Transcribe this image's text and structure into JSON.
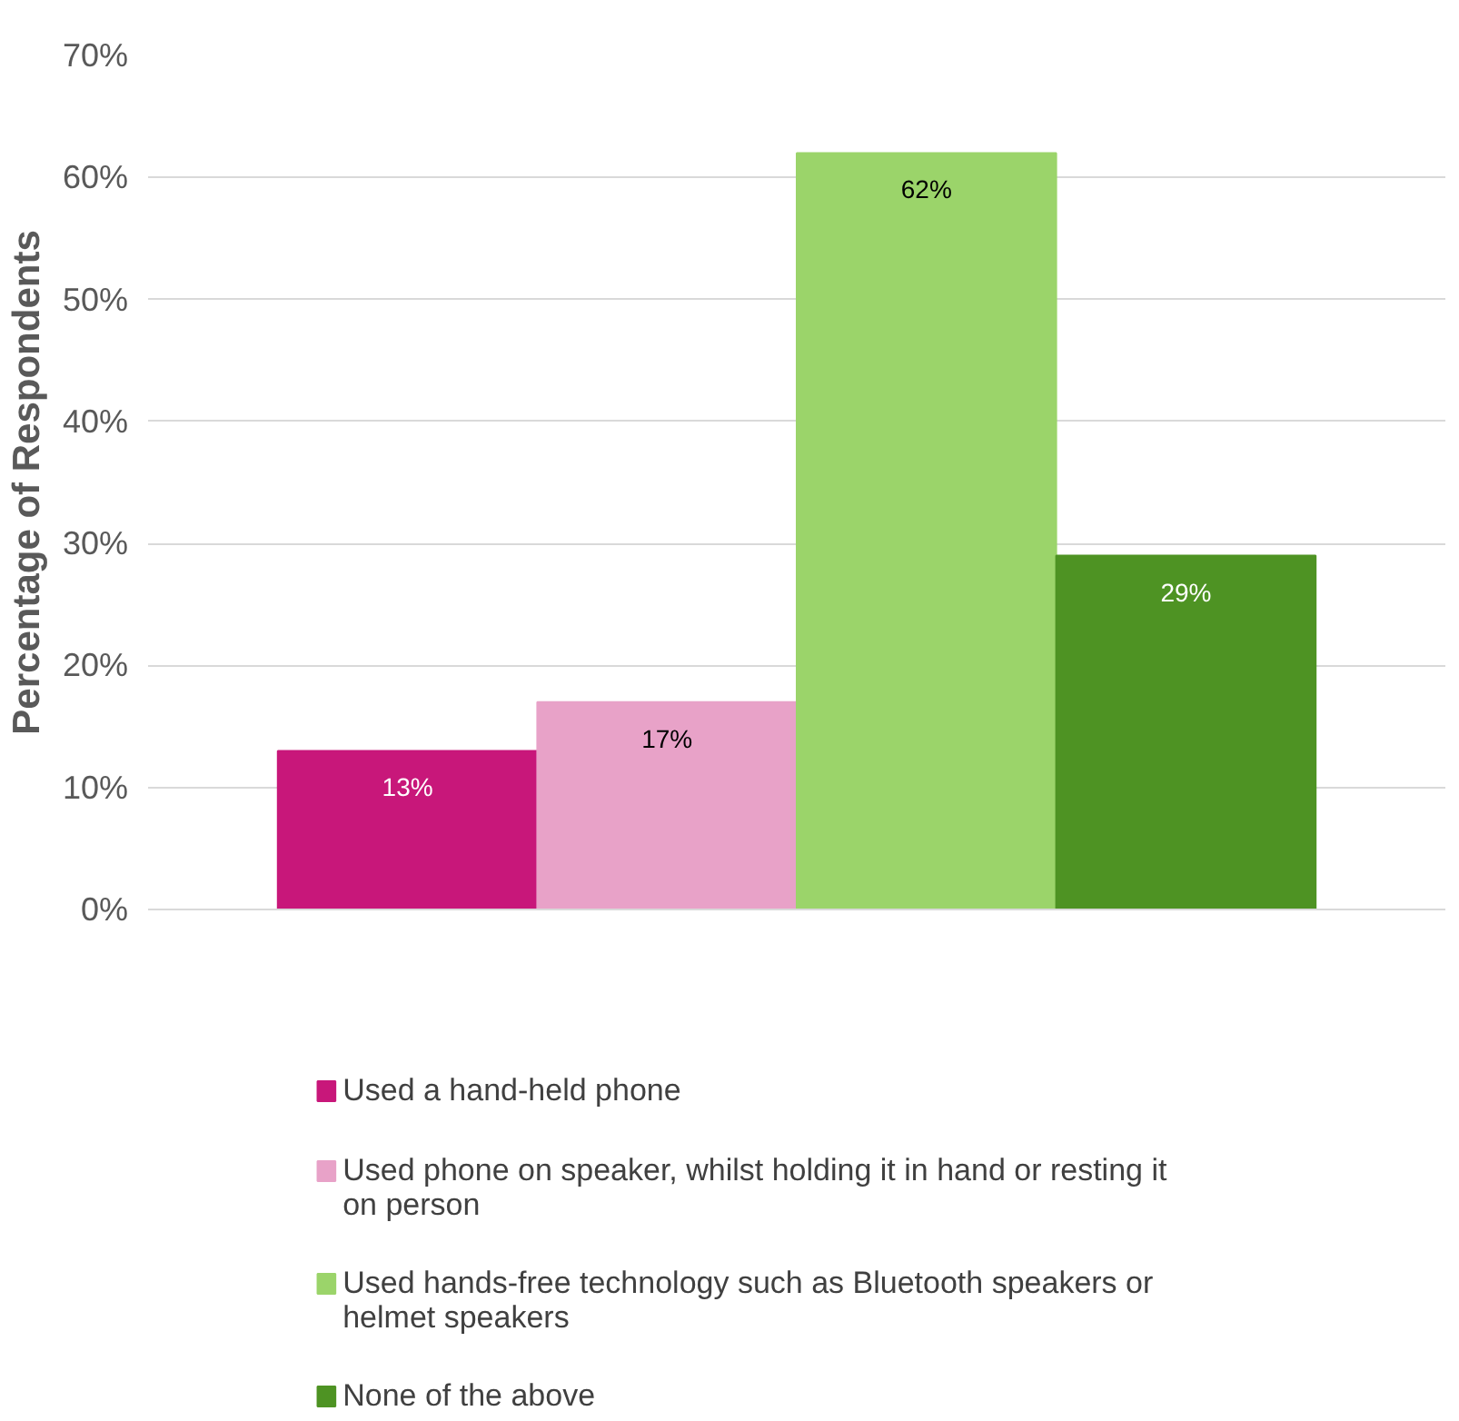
{
  "chart_data": {
    "type": "bar",
    "ylabel": "Percentage of Respondents",
    "categories": [
      null
    ],
    "series": [
      {
        "name": "Used a hand-held phone",
        "color": "#c8177a",
        "values": [
          13
        ],
        "value_labels": [
          "13%"
        ]
      },
      {
        "name": "Used phone on speaker, whilst holding it in hand or resting it on person",
        "color": "#e8a2c8",
        "values": [
          17
        ],
        "value_labels": [
          "17%"
        ]
      },
      {
        "name": "Used hands-free technology such as Bluetooth speakers or helmet speakers",
        "color": "#9bd46a",
        "values": [
          62
        ],
        "value_labels": [
          "62%"
        ]
      },
      {
        "name": "None of the above",
        "color": "#4e9323",
        "values": [
          29
        ],
        "value_labels": [
          "29%"
        ]
      }
    ],
    "ylim": [
      0,
      70
    ],
    "yticks": [
      {
        "value": 0,
        "label": "0%"
      },
      {
        "value": 10,
        "label": "10%"
      },
      {
        "value": 20,
        "label": "20%"
      },
      {
        "value": 30,
        "label": "30%"
      },
      {
        "value": 40,
        "label": "40%"
      },
      {
        "value": 50,
        "label": "50%"
      },
      {
        "value": 60,
        "label": "60%"
      },
      {
        "value": 70,
        "label": "70%"
      }
    ],
    "grid": "y",
    "legend": "bottom"
  }
}
